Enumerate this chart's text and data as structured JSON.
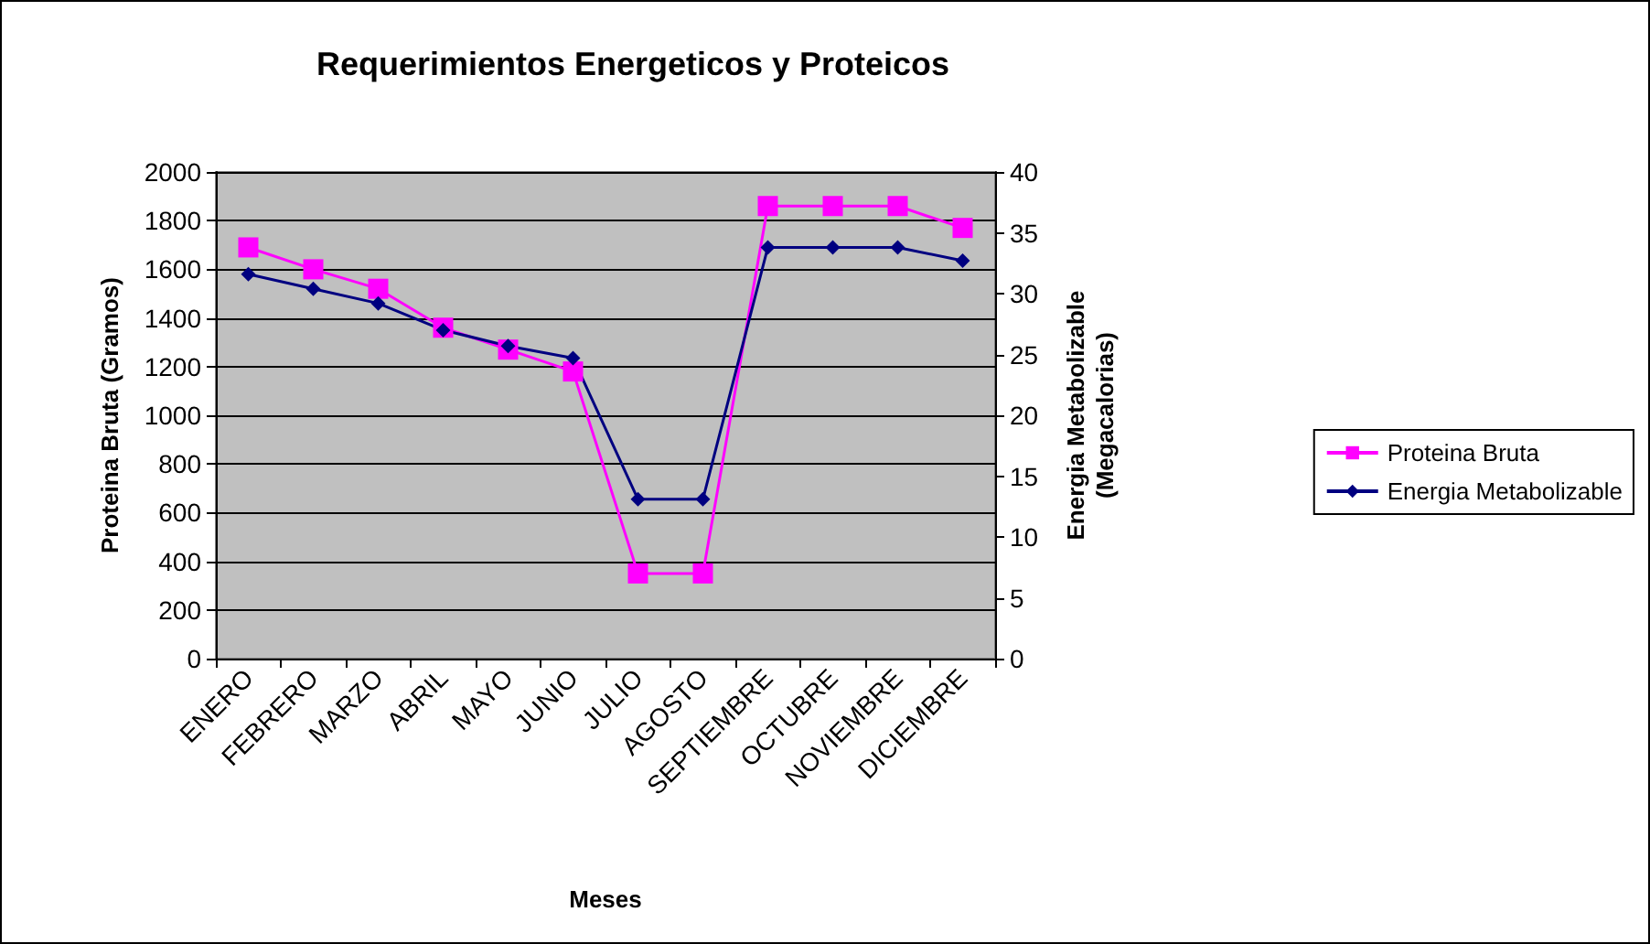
{
  "chart_data": {
    "type": "line",
    "title": "Requerimientos Energeticos y Proteicos",
    "xlabel": "Meses",
    "ylabel": "Proteina Bruta (Gramos)",
    "y2label": "Energia Metabolizable\n(Megacalorias)",
    "categories": [
      "ENERO",
      "FEBRERO",
      "MARZO",
      "ABRIL",
      "MAYO",
      "JUNIO",
      "JULIO",
      "AGOSTO",
      "SEPTIEMBRE",
      "OCTUBRE",
      "NOVIEMBRE",
      "DICIEMBRE"
    ],
    "series": [
      {
        "name": "Proteina Bruta",
        "color": "#ff00ff",
        "marker": "square",
        "values": [
          1690,
          1600,
          1520,
          1360,
          1270,
          1180,
          350,
          350,
          1860,
          1860,
          1860,
          1770
        ]
      },
      {
        "name": "Energia Metabolizable",
        "color": "#000080",
        "marker": "diamond",
        "axis": "y2",
        "values": [
          31.6,
          30.4,
          29.2,
          27,
          25.7,
          24.7,
          13.1,
          13.1,
          33.8,
          33.8,
          33.8,
          32.7
        ]
      }
    ],
    "ylim": [
      0,
      2000
    ],
    "yticks": [
      0,
      200,
      400,
      600,
      800,
      1000,
      1200,
      1400,
      1600,
      1800,
      2000
    ],
    "y2lim": [
      0,
      40
    ],
    "y2ticks": [
      0,
      5,
      10,
      15,
      20,
      25,
      30,
      35,
      40
    ],
    "grid": "y",
    "legend": "right",
    "line_style": "solid"
  }
}
